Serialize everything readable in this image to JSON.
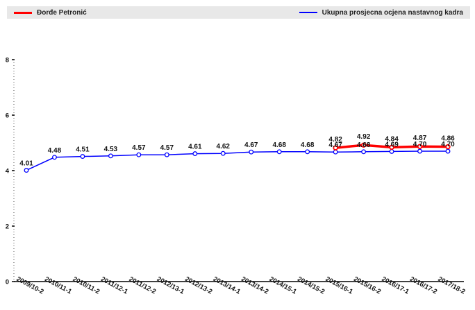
{
  "chart_data": {
    "type": "line",
    "categories": [
      "2009/10-2",
      "2010/11-1",
      "2010/11-2",
      "2011/12-1",
      "2011/12-2",
      "2012/13-1",
      "2012/13-2",
      "2013/14-1",
      "2013/14-2",
      "2014/15-1",
      "2014/15-2",
      "2015/16-1",
      "2015/16-2",
      "2016/17-1",
      "2016/17-2",
      "2017/18-2"
    ],
    "series": [
      {
        "name": "Ukupna prosjecna ocjena nastavnog kadra",
        "color": "#0000ff",
        "values": [
          4.01,
          4.48,
          4.51,
          4.53,
          4.57,
          4.57,
          4.61,
          4.62,
          4.67,
          4.68,
          4.68,
          4.67,
          4.68,
          4.69,
          4.7,
          4.7
        ],
        "labels": [
          "4.01",
          "4.48",
          "4.51",
          "4.53",
          "4.57",
          "4.57",
          "4.61",
          "4.62",
          "4.67",
          "4.68",
          "4.68",
          "4.67",
          "4.68",
          "4.69",
          "4.70",
          "4.70"
        ]
      },
      {
        "name": "Đorđe Petronić",
        "color": "#ff0000",
        "values": [
          null,
          null,
          null,
          null,
          null,
          null,
          null,
          null,
          null,
          null,
          null,
          4.82,
          4.92,
          4.84,
          4.87,
          4.86
        ],
        "labels": [
          "",
          "",
          "",
          "",
          "",
          "",
          "",
          "",
          "",
          "",
          "",
          "4.82",
          "4.92",
          "4.84",
          "4.87",
          "4.86"
        ]
      }
    ],
    "ylim": [
      0,
      8
    ],
    "yticks": [
      "0",
      "2",
      "4",
      "6",
      "8"
    ],
    "title": "",
    "xlabel": "",
    "ylabel": "",
    "grid": false,
    "legend": "top"
  },
  "legend": {
    "red_label": "Đorđe Petronić",
    "blue_label": "Ukupna prosjecna ocjena nastavnog kadra"
  }
}
